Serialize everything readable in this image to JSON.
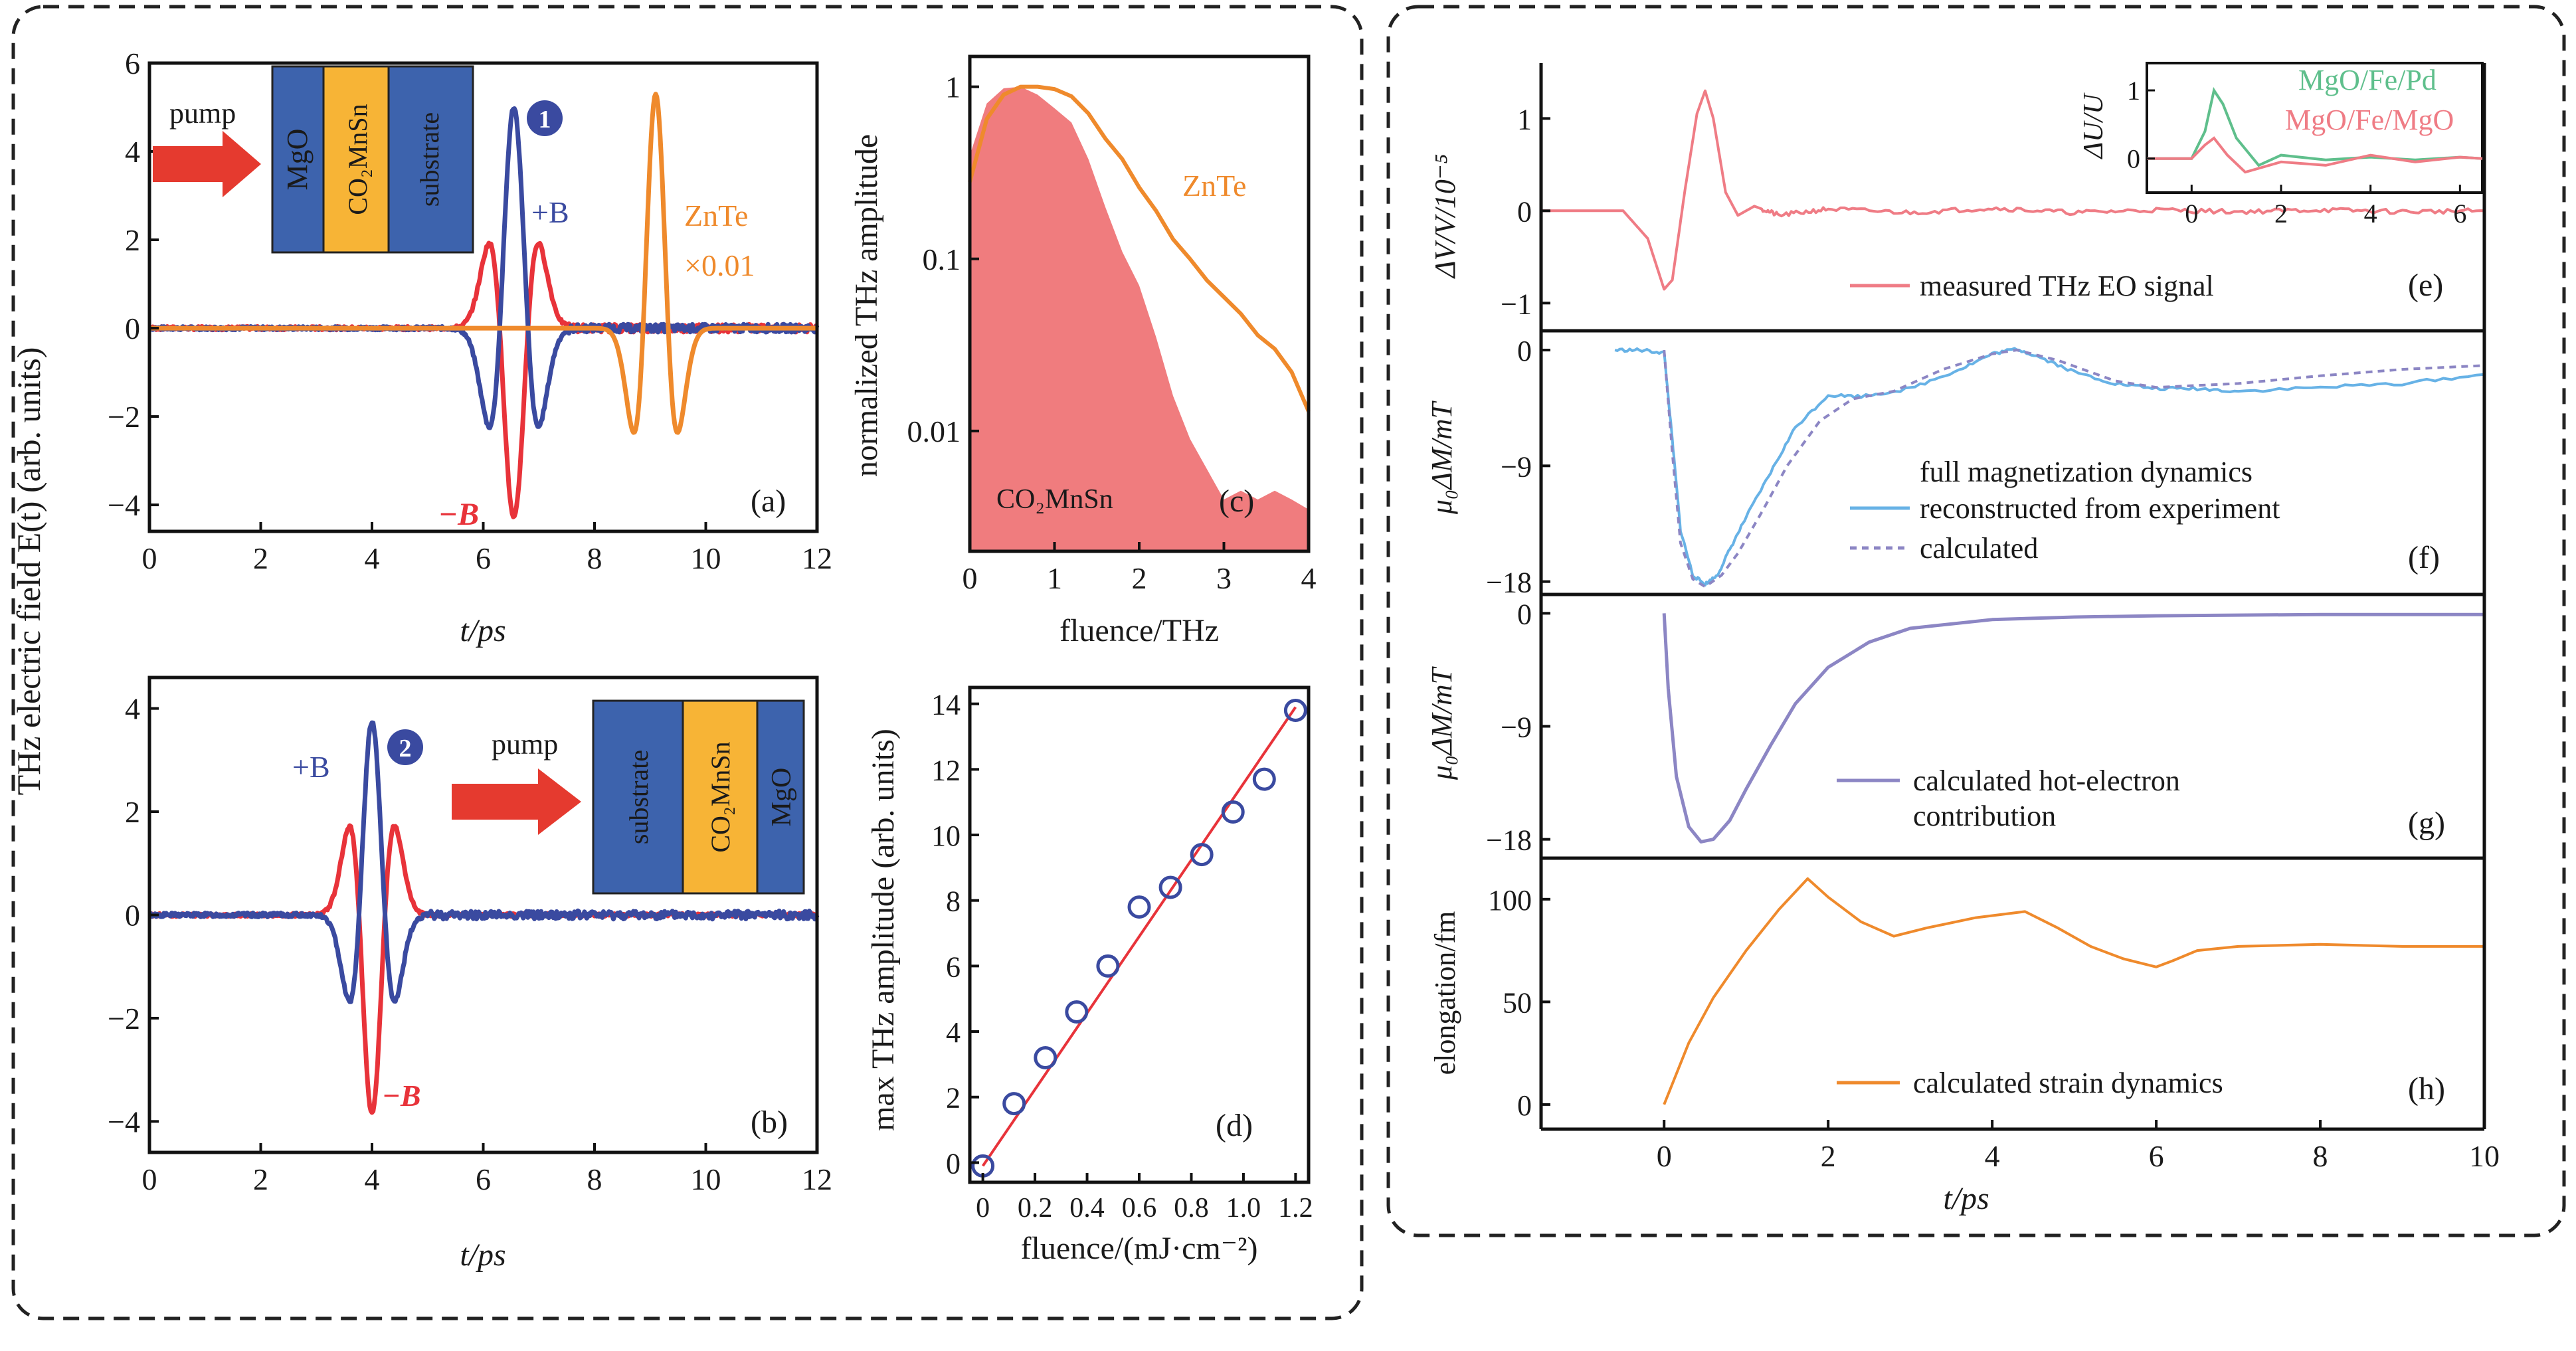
{
  "colors": {
    "blue": "#3a4aa0",
    "red": "#e8333a",
    "orange": "#ef8a2c",
    "pink_line": "#ef7c85",
    "pink_fill": "#f07c7e",
    "light_blue": "#67b2e6",
    "lavender": "#8c86c4",
    "green": "#5fbf8c",
    "box_blue": "#3d63ad",
    "box_yellow": "#f7b436",
    "arrow_red": "#e53a2f"
  },
  "chart_data": [
    {
      "id": "a",
      "type": "line",
      "panel_label": "(a)",
      "xlabel": "t/ps",
      "ylabel": "THz electric field E(t) (arb. units)",
      "xlim": [
        0,
        12
      ],
      "ylim": [
        -4.6,
        6
      ],
      "xticks": [
        "0",
        "2",
        "4",
        "6",
        "8",
        "10",
        "12"
      ],
      "yticks": [
        "−4",
        "−2",
        "0",
        "2",
        "4",
        "6"
      ],
      "series": [
        {
          "name": "+B",
          "pulses": [
            {
              "t0": 6.55,
              "amplitude": 5.0,
              "width": 0.36
            }
          ]
        },
        {
          "name": "−B",
          "pulses": [
            {
              "t0": 6.55,
              "amplitude": -4.3,
              "width": 0.36
            }
          ]
        },
        {
          "name": "ZnTe ×0.01",
          "pulses": [
            {
              "t0": 9.1,
              "amplitude": 5.3,
              "width": 0.32
            }
          ]
        }
      ],
      "annotations": {
        "pump": "pump",
        "layers": [
          "MgO",
          "CO₂MnSn",
          "substrate"
        ],
        "plus_b": "+B",
        "minus_b": "−B",
        "zinc_telluride": "ZnTe",
        "scale": "×0.01",
        "marker": "1"
      }
    },
    {
      "id": "b",
      "type": "line",
      "panel_label": "(b)",
      "xlabel": "t/ps",
      "ylabel": "",
      "xlim": [
        0,
        12
      ],
      "ylim": [
        -4.6,
        4.6
      ],
      "xticks": [
        "0",
        "2",
        "4",
        "6",
        "8",
        "10",
        "12"
      ],
      "yticks": [
        "−4",
        "−2",
        "0",
        "2",
        "4"
      ],
      "series": [
        {
          "name": "+B",
          "pulses": [
            {
              "t0": 4.0,
              "amplitude": 3.75,
              "width": 0.33
            }
          ]
        },
        {
          "name": "−B",
          "pulses": [
            {
              "t0": 4.0,
              "amplitude": -3.85,
              "width": 0.33
            }
          ]
        }
      ],
      "annotations": {
        "pump": "pump",
        "layers": [
          "substrate",
          "CO₂MnSn",
          "MgO"
        ],
        "plus_b": "+B",
        "minus_b": "−B",
        "marker": "2"
      }
    },
    {
      "id": "c",
      "type": "area",
      "panel_label": "(c)",
      "xlabel": "fluence/THz",
      "ylabel": "normalized THz amplitude",
      "xlim": [
        0,
        4
      ],
      "ylim": [
        0.002,
        1.5
      ],
      "yscale": "log",
      "xticks": [
        "0",
        "1",
        "2",
        "3",
        "4"
      ],
      "yticks": [
        "0.01",
        "0.1",
        "1"
      ],
      "series": [
        {
          "name": "ZnTe",
          "x": [
            0,
            0.2,
            0.4,
            0.6,
            0.8,
            1.0,
            1.2,
            1.4,
            1.6,
            1.8,
            2.0,
            2.2,
            2.4,
            2.6,
            2.8,
            3.0,
            3.2,
            3.4,
            3.6,
            3.8,
            4.0
          ],
          "y": [
            0.28,
            0.65,
            0.9,
            1.0,
            1.0,
            0.97,
            0.88,
            0.7,
            0.5,
            0.38,
            0.26,
            0.19,
            0.13,
            0.1,
            0.075,
            0.06,
            0.048,
            0.036,
            0.03,
            0.022,
            0.013
          ]
        },
        {
          "name": "CO₂MnSn",
          "x": [
            0,
            0.2,
            0.4,
            0.6,
            0.8,
            1.0,
            1.2,
            1.4,
            1.6,
            1.8,
            2.0,
            2.2,
            2.4,
            2.6,
            2.8,
            3.0,
            3.2,
            3.4,
            3.6,
            3.8,
            4.0
          ],
          "y": [
            0.4,
            0.8,
            0.98,
            1.0,
            0.9,
            0.75,
            0.62,
            0.38,
            0.2,
            0.11,
            0.07,
            0.035,
            0.016,
            0.009,
            0.006,
            0.004,
            0.0045,
            0.004,
            0.0045,
            0.004,
            0.0035
          ]
        }
      ],
      "annotations": {
        "zinc_telluride": "ZnTe",
        "sample": "CO₂MnSn"
      }
    },
    {
      "id": "d",
      "type": "scatter",
      "panel_label": "(d)",
      "xlabel": "fluence/(mJ·cm⁻²)",
      "ylabel": "max THz amplitude (arb. units)",
      "xlim": [
        -0.05,
        1.25
      ],
      "ylim": [
        -0.6,
        14.5
      ],
      "xticks": [
        "0",
        "0.2",
        "0.4",
        "0.6",
        "0.8",
        "1.0",
        "1.2"
      ],
      "yticks": [
        "0",
        "2",
        "4",
        "6",
        "8",
        "10",
        "12",
        "14"
      ],
      "points": {
        "x": [
          0.0,
          0.12,
          0.24,
          0.36,
          0.48,
          0.6,
          0.72,
          0.84,
          0.96,
          1.08,
          1.2
        ],
        "y": [
          -0.1,
          1.8,
          3.2,
          4.6,
          6.0,
          7.8,
          8.4,
          9.4,
          10.7,
          11.7,
          13.8
        ]
      },
      "fit": {
        "x": [
          0.0,
          1.2
        ],
        "y": [
          -0.1,
          13.9
        ]
      }
    },
    {
      "id": "e",
      "type": "line",
      "panel_label": "(e)",
      "xlabel": "",
      "ylabel": "ΔV/V/10⁻⁵",
      "xlim": [
        -1.5,
        10
      ],
      "ylim": [
        -1.3,
        1.6
      ],
      "yticks": [
        "−1",
        "0",
        "1"
      ],
      "series": [
        {
          "name": "measured THz EO signal",
          "x": [
            -1.5,
            -0.5,
            -0.2,
            0.0,
            0.1,
            0.25,
            0.4,
            0.5,
            0.6,
            0.75,
            0.9,
            1.1,
            1.4,
            2,
            3,
            4,
            5,
            6,
            7,
            8,
            9,
            10
          ],
          "y": [
            0,
            0,
            -0.3,
            -0.85,
            -0.75,
            0.2,
            1.05,
            1.3,
            1.0,
            0.2,
            -0.05,
            0.05,
            -0.05,
            0.02,
            -0.02,
            0.03,
            -0.02,
            0.01,
            -0.01,
            0.01,
            -0.01,
            0
          ]
        }
      ],
      "inset": {
        "ylabel": "ΔU/U",
        "xlim": [
          -1,
          6.5
        ],
        "ylim": [
          -0.5,
          1.4
        ],
        "xticks": [
          "0",
          "2",
          "4",
          "6"
        ],
        "yticks": [
          "0",
          "1"
        ],
        "series": [
          {
            "name": "MgO/Fe/Pd",
            "x": [
              -1,
              0.0,
              0.3,
              0.5,
              0.7,
              1.0,
              1.5,
              2,
              3,
              4,
              5,
              6,
              6.5
            ],
            "y": [
              0,
              0,
              0.4,
              1.0,
              0.8,
              0.3,
              -0.1,
              0.05,
              -0.02,
              0.02,
              -0.02,
              0.02,
              0
            ]
          },
          {
            "name": "MgO/Fe/MgO",
            "x": [
              -1,
              0.0,
              0.3,
              0.5,
              0.8,
              1.2,
              2,
              3,
              4,
              5,
              6,
              6.5
            ],
            "y": [
              0,
              0,
              0.2,
              0.3,
              0.05,
              -0.2,
              -0.05,
              -0.1,
              0.05,
              -0.05,
              0.02,
              0
            ]
          }
        ]
      }
    },
    {
      "id": "f",
      "type": "line",
      "panel_label": "(f)",
      "xlabel": "",
      "ylabel": "μ₀ΔM/mT",
      "xlim": [
        -1.5,
        10
      ],
      "ylim": [
        -19,
        1.5
      ],
      "yticks": [
        "0",
        "−9",
        "−18"
      ],
      "series": [
        {
          "name": "reconstructed from experiment",
          "x": [
            -0.6,
            -0.3,
            0.0,
            0.1,
            0.2,
            0.35,
            0.5,
            0.65,
            0.8,
            1.0,
            1.3,
            1.6,
            2.0,
            2.4,
            3.0,
            3.6,
            4.0,
            4.3,
            4.6,
            5.0,
            5.5,
            6.0,
            6.5,
            7.0,
            8.0,
            9.0,
            10.0
          ],
          "y": [
            0,
            0,
            -0.2,
            -7,
            -14,
            -17.5,
            -18.2,
            -17.5,
            -15.5,
            -13,
            -9.5,
            -6,
            -3.5,
            -3.6,
            -3.0,
            -1.5,
            -0.3,
            0.1,
            -0.6,
            -1.7,
            -2.6,
            -3.0,
            -3.0,
            -3.2,
            -2.9,
            -2.6,
            -1.9
          ]
        },
        {
          "name": "calculated",
          "x": [
            0.0,
            0.1,
            0.2,
            0.35,
            0.5,
            0.7,
            0.9,
            1.2,
            1.5,
            1.9,
            2.3,
            2.8,
            3.4,
            4.0,
            4.3,
            4.8,
            5.5,
            6.0,
            7.0,
            8.0,
            9.0,
            10.0
          ],
          "y": [
            0,
            -8,
            -15,
            -17.8,
            -18.4,
            -17.5,
            -15.8,
            -12.5,
            -9,
            -5.5,
            -3.8,
            -3.2,
            -1.5,
            -0.3,
            0,
            -0.8,
            -2.4,
            -2.9,
            -2.6,
            -2.0,
            -1.5,
            -1.2
          ]
        }
      ],
      "legend": [
        "full magnetization dynamics",
        "reconstructed from experiment",
        "calculated"
      ]
    },
    {
      "id": "g",
      "type": "line",
      "panel_label": "(g)",
      "xlabel": "",
      "ylabel": "μ₀ΔM/mT",
      "xlim": [
        -1.5,
        10
      ],
      "ylim": [
        -19.5,
        1.5
      ],
      "yticks": [
        "0",
        "−9",
        "−18"
      ],
      "series": [
        {
          "name": "calculated hot-electron contribution",
          "x": [
            0.0,
            0.05,
            0.15,
            0.3,
            0.45,
            0.6,
            0.8,
            1.0,
            1.3,
            1.6,
            2.0,
            2.5,
            3.0,
            4.0,
            5.0,
            6.0,
            8.0,
            10.0
          ],
          "y": [
            0,
            -6,
            -13,
            -17,
            -18.2,
            -18,
            -16.5,
            -14,
            -10.5,
            -7.2,
            -4.3,
            -2.3,
            -1.2,
            -0.5,
            -0.3,
            -0.2,
            -0.1,
            -0.1
          ]
        }
      ],
      "legend": [
        "calculated hot-electron",
        "contribution"
      ]
    },
    {
      "id": "h",
      "type": "line",
      "panel_label": "(h)",
      "xlabel": "t/ps",
      "ylabel": "elongation/fm",
      "xlim": [
        -1.5,
        10
      ],
      "ylim": [
        -12,
        120
      ],
      "xticks": [
        "0",
        "2",
        "4",
        "6",
        "8",
        "10"
      ],
      "yticks": [
        "0",
        "50",
        "100"
      ],
      "series": [
        {
          "name": "calculated strain dynamics",
          "x": [
            0.0,
            0.3,
            0.6,
            1.0,
            1.4,
            1.75,
            2.0,
            2.4,
            2.8,
            3.2,
            3.8,
            4.4,
            4.8,
            5.2,
            5.6,
            6.0,
            6.2,
            6.5,
            7.0,
            8.0,
            9.0,
            10.0
          ],
          "y": [
            0,
            30,
            52,
            75,
            95,
            110,
            101,
            89,
            82,
            86,
            91,
            94,
            86,
            77,
            71,
            67,
            70,
            75,
            77,
            78,
            77,
            77
          ]
        }
      ]
    }
  ]
}
